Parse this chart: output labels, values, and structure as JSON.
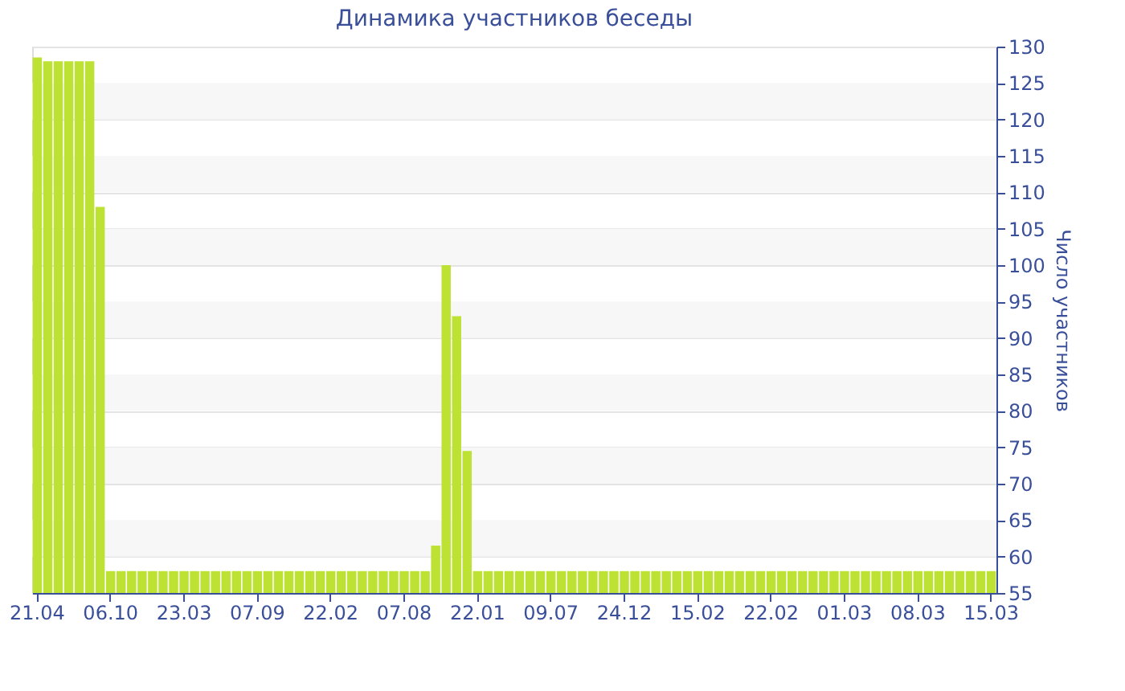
{
  "chart_data": {
    "type": "bar",
    "title": "Динамика участников беседы",
    "ylabel": "Число участников",
    "categories": [
      "21.04",
      null,
      null,
      null,
      null,
      null,
      null,
      "06.10",
      null,
      null,
      null,
      null,
      null,
      null,
      "23.03",
      null,
      null,
      null,
      null,
      null,
      null,
      "07.09",
      null,
      null,
      null,
      null,
      null,
      null,
      "22.02",
      null,
      null,
      null,
      null,
      null,
      null,
      "07.08",
      null,
      null,
      null,
      null,
      null,
      null,
      "22.01",
      null,
      null,
      null,
      null,
      null,
      null,
      "09.07",
      null,
      null,
      null,
      null,
      null,
      null,
      "24.12",
      null,
      null,
      null,
      null,
      null,
      null,
      "15.02",
      null,
      null,
      null,
      null,
      null,
      null,
      "22.02",
      null,
      null,
      null,
      null,
      null,
      null,
      "01.03",
      null,
      null,
      null,
      null,
      null,
      null,
      "08.03",
      null,
      null,
      null,
      null,
      null,
      null,
      "15.03"
    ],
    "values": [
      128.5,
      128,
      128,
      128,
      128,
      128,
      108,
      58,
      58,
      58,
      58,
      58,
      58,
      58,
      58,
      58,
      58,
      58,
      58,
      58,
      58,
      58,
      58,
      58,
      58,
      58,
      58,
      58,
      58,
      58,
      58,
      58,
      58,
      58,
      58,
      58,
      58,
      58,
      61.5,
      100,
      93,
      74.5,
      58,
      58,
      58,
      58,
      58,
      58,
      58,
      58,
      58,
      58,
      58,
      58,
      58,
      58,
      58,
      58,
      58,
      58,
      58,
      58,
      58,
      58,
      58,
      58,
      58,
      58,
      58,
      58,
      58,
      58,
      58,
      58,
      58,
      58,
      58,
      58,
      58,
      58,
      58,
      58,
      58,
      58,
      58,
      58,
      58,
      58,
      58,
      58,
      58,
      58
    ],
    "color": "#bde234",
    "ylim": [
      55,
      130
    ],
    "yticks": [
      55,
      60,
      65,
      70,
      75,
      80,
      85,
      90,
      95,
      100,
      105,
      110,
      115,
      120,
      125,
      130
    ],
    "grid": "y"
  }
}
